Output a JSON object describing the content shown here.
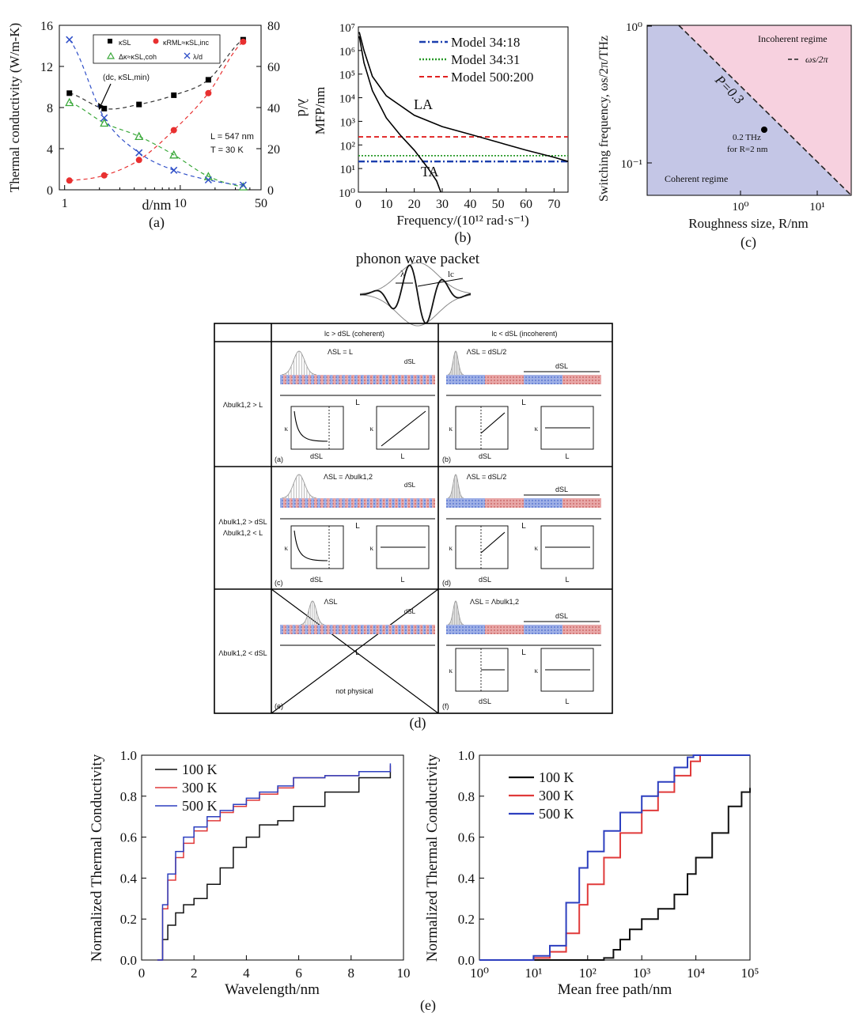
{
  "chart_data": [
    {
      "panel": "(a)",
      "type": "scatter",
      "xlabel": "d/nm",
      "ylabel": "Thermal conductivity (W/m-K)",
      "ylabel_right": "λ/d",
      "xscale": "log",
      "xlim": [
        0.9,
        50
      ],
      "ylim": [
        0,
        16
      ],
      "ylim_right": [
        0,
        80
      ],
      "xticks": [
        "1",
        "10",
        "50"
      ],
      "yticks": [
        "0",
        "4",
        "8",
        "12",
        "16"
      ],
      "yticks_right": [
        "0",
        "20",
        "40",
        "60",
        "80"
      ],
      "legend": [
        "κSL",
        "κRML≈κSL,inc",
        "Δκ≈κSL,coh",
        "λ/d"
      ],
      "legend_position": "top",
      "annotation": "(dc, κSL,min)",
      "note_lines": [
        "L = 547 nm",
        "T = 30 K"
      ],
      "series": [
        {
          "name": "κSL",
          "marker": "square",
          "color": "#000000",
          "axis": "left",
          "x": [
            1.1,
            2.2,
            4.4,
            8.8,
            17.5,
            35
          ],
          "y": [
            9.4,
            7.9,
            8.3,
            9.2,
            10.7,
            14.6
          ]
        },
        {
          "name": "κRML≈κSL,inc",
          "marker": "circle",
          "color": "#e83030",
          "axis": "left",
          "x": [
            1.1,
            2.2,
            4.4,
            8.8,
            17.5,
            35
          ],
          "y": [
            0.9,
            1.4,
            2.9,
            5.8,
            9.4,
            14.4
          ]
        },
        {
          "name": "Δκ≈κSL,coh",
          "marker": "triangle",
          "color": "#3aa83a",
          "axis": "left",
          "x": [
            1.1,
            2.2,
            4.4,
            8.8,
            17.5,
            35
          ],
          "y": [
            8.5,
            6.5,
            5.2,
            3.4,
            1.3,
            0.3
          ]
        },
        {
          "name": "λ/d",
          "marker": "x",
          "color": "#2f4fc8",
          "axis": "right",
          "x": [
            1.1,
            2.2,
            4.4,
            8.8,
            17.5,
            35
          ],
          "y": [
            73,
            35,
            18,
            9.5,
            4.8,
            2.3
          ]
        }
      ]
    },
    {
      "panel": "(b)",
      "type": "line",
      "xlabel": "Frequency/(10¹² rad·s⁻¹)",
      "ylabel": "MFP/nm",
      "xlim": [
        0,
        75
      ],
      "ylim": [
        1,
        10000000
      ],
      "yscale": "log",
      "xticks": [
        "0",
        "10",
        "20",
        "30",
        "40",
        "50",
        "60",
        "70"
      ],
      "yticks": [
        "10⁰",
        "10¹",
        "10²",
        "10³",
        "10⁴",
        "10⁵",
        "10⁶",
        "10⁷"
      ],
      "curve_labels": [
        "LA",
        "TA"
      ],
      "legend_position": "top-right",
      "series": [
        {
          "name": "Model 34:18",
          "color": "#1b3fae",
          "style": "dashdot",
          "y_const": 20
        },
        {
          "name": "Model 34:31",
          "color": "#2a9a2a",
          "style": "dotted",
          "y_const": 35
        },
        {
          "name": "Model 500:200",
          "color": "#e02020",
          "style": "dashed",
          "y_const": 220
        },
        {
          "name": "LA",
          "color": "#000000",
          "x": [
            0.3,
            2,
            5,
            10,
            20,
            30,
            40,
            50,
            60,
            70,
            75
          ],
          "y": [
            6000000,
            1000000,
            80000,
            12000,
            1800,
            600,
            280,
            130,
            60,
            30,
            20
          ]
        },
        {
          "name": "TA",
          "color": "#000000",
          "x": [
            0.3,
            2,
            5,
            10,
            15,
            20,
            25,
            28,
            29.5
          ],
          "y": [
            4000000,
            300000,
            20000,
            1400,
            260,
            60,
            10,
            3,
            1
          ]
        }
      ]
    },
    {
      "panel": "(c)",
      "type": "area",
      "xlabel": "Roughness size, R/nm",
      "ylabel": "Switching frequency, ωs/2π/THz",
      "xscale": "log",
      "yscale": "log",
      "xticks": [
        "10⁰",
        "10¹"
      ],
      "yticks": [
        "10⁻¹",
        "10⁰"
      ],
      "regions": [
        "Incoherent regime",
        "Coherent regime"
      ],
      "line_label": "P=0.3",
      "legend": "ωs/2π",
      "legend_position": "top-right",
      "point_label": [
        "0.2 THz",
        "for R=2 nm"
      ],
      "colors": {
        "coherent": "#c4c6e6",
        "incoherent": "#f7d1df"
      }
    },
    {
      "panel": "(e-left)",
      "type": "line",
      "xlabel": "Wavelength/nm",
      "ylabel": "Normalized Thermal Conductivity",
      "xlim": [
        0,
        10
      ],
      "ylim": [
        0,
        1
      ],
      "xticks": [
        "0",
        "2",
        "4",
        "6",
        "8",
        "10"
      ],
      "yticks": [
        "0.0",
        "0.2",
        "0.4",
        "0.6",
        "0.8",
        "1.0"
      ],
      "legend_position": "top-left",
      "series": [
        {
          "name": "100 K",
          "color": "#111111",
          "x": [
            0.6,
            0.8,
            1,
            1.3,
            1.6,
            2,
            2.5,
            3,
            3.5,
            4,
            4.5,
            5.2,
            5.8,
            7,
            8.3,
            9.5
          ],
          "y": [
            0,
            0.1,
            0.17,
            0.23,
            0.27,
            0.3,
            0.37,
            0.45,
            0.55,
            0.6,
            0.66,
            0.68,
            0.75,
            0.82,
            0.89,
            0.92
          ]
        },
        {
          "name": "300 K",
          "color": "#e03a3a",
          "x": [
            0.6,
            0.8,
            1,
            1.3,
            1.6,
            2,
            2.5,
            3,
            3.5,
            4,
            4.5,
            5.2,
            5.8,
            7,
            8.3,
            9.5
          ],
          "y": [
            0,
            0.25,
            0.39,
            0.5,
            0.57,
            0.63,
            0.68,
            0.72,
            0.75,
            0.78,
            0.81,
            0.84,
            0.89,
            0.9,
            0.92,
            0.95
          ]
        },
        {
          "name": "500 K",
          "color": "#2d3fbf",
          "x": [
            0.6,
            0.8,
            1,
            1.3,
            1.6,
            2,
            2.5,
            3,
            3.5,
            4,
            4.5,
            5.2,
            5.8,
            7,
            8.3,
            9.5
          ],
          "y": [
            0,
            0.27,
            0.42,
            0.53,
            0.6,
            0.65,
            0.7,
            0.73,
            0.76,
            0.79,
            0.82,
            0.85,
            0.89,
            0.9,
            0.92,
            0.96
          ]
        }
      ]
    },
    {
      "panel": "(e-right)",
      "type": "line",
      "xlabel": "Mean free path/nm",
      "ylabel": "Normalized Thermal Conductivity",
      "xscale": "log",
      "xlim": [
        1,
        100000
      ],
      "ylim": [
        0,
        1
      ],
      "xticks": [
        "10⁰",
        "10¹",
        "10²",
        "10³",
        "10⁴",
        "10⁵"
      ],
      "yticks": [
        "0.0",
        "0.2",
        "0.4",
        "0.6",
        "0.8",
        "1.0"
      ],
      "legend_position": "top-left",
      "series": [
        {
          "name": "100 K",
          "color": "#111111",
          "x": [
            1,
            100,
            200,
            300,
            400,
            600,
            1000,
            2000,
            4000,
            7000,
            10000,
            20000,
            40000,
            70000,
            100000
          ],
          "y": [
            0,
            0,
            0.01,
            0.05,
            0.1,
            0.15,
            0.2,
            0.25,
            0.32,
            0.42,
            0.5,
            0.62,
            0.75,
            0.82,
            0.84
          ]
        },
        {
          "name": "300 K",
          "color": "#e03a3a",
          "x": [
            1,
            10,
            20,
            40,
            70,
            100,
            200,
            400,
            1000,
            2000,
            4000,
            8000,
            12000,
            20000,
            100000
          ],
          "y": [
            0,
            0.01,
            0.04,
            0.13,
            0.27,
            0.37,
            0.5,
            0.62,
            0.73,
            0.82,
            0.9,
            0.97,
            1,
            1,
            1
          ]
        },
        {
          "name": "500 K",
          "color": "#2d3fbf",
          "x": [
            1,
            10,
            20,
            40,
            70,
            100,
            200,
            400,
            1000,
            2000,
            4000,
            7000,
            9000,
            20000,
            100000
          ],
          "y": [
            0,
            0.02,
            0.07,
            0.28,
            0.45,
            0.53,
            0.63,
            0.72,
            0.8,
            0.87,
            0.94,
            0.99,
            1,
            1,
            1
          ]
        }
      ]
    }
  ],
  "labels": {
    "a": "(a)",
    "b": "(b)",
    "c": "(c)",
    "d": "(d)",
    "e": "(e)",
    "packet_title": "phonon wave packet",
    "lambda": "λ",
    "lc": "lc"
  },
  "diagram": {
    "col_headers": [
      "lc > dSL (coherent)",
      "lc < dSL (incoherent)"
    ],
    "row_headers": [
      "Λbulk1,2 > L",
      "Λbulk1,2 > dSL",
      "Λbulk1,2 < L",
      "Λbulk1,2 < dSL"
    ],
    "cell_labels": [
      "(a)",
      "(b)",
      "(c)",
      "(d)",
      "(e)",
      "(f)"
    ],
    "annotations": [
      "ΛSL = L",
      "ΛSL = dSL/2",
      "ΛSL = Λbulk1,2",
      "ΛSL = dSL/2",
      "ΛSL",
      "ΛSL = Λbulk1,2"
    ],
    "dsl": "dSL",
    "L": "L",
    "k": "κ",
    "not_physical": "not physical"
  }
}
